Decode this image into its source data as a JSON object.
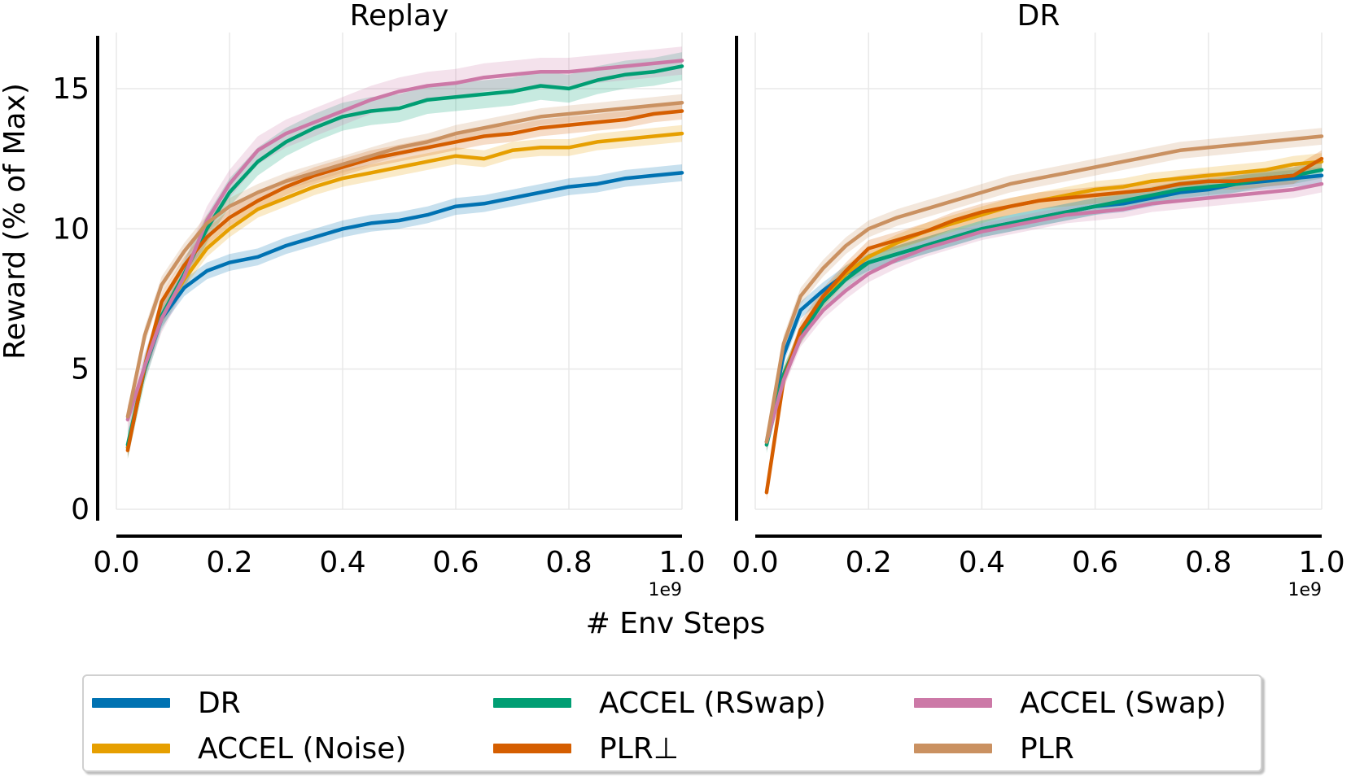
{
  "colors": {
    "DR": "#0072b2",
    "ACCEL (Noise)": "#e69f00",
    "ACCEL (RSwap)": "#009e73",
    "PLR_perp": "#d55e00",
    "ACCEL (Swap)": "#cc79a7",
    "PLR": "#ca9161"
  },
  "chart_data": [
    {
      "type": "line",
      "title": "Replay",
      "xlabel": "# Env Steps",
      "ylabel": "Reward (% of Max)",
      "x_scale_label": "1e9",
      "xlim": [
        0.0,
        1.0
      ],
      "ylim": [
        0,
        17
      ],
      "xticks": [
        "0.0",
        "0.2",
        "0.4",
        "0.6",
        "0.8",
        "1.0"
      ],
      "yticks": [
        "0",
        "5",
        "10",
        "15"
      ],
      "grid": true,
      "x": [
        0.02,
        0.05,
        0.08,
        0.12,
        0.16,
        0.2,
        0.25,
        0.3,
        0.35,
        0.4,
        0.45,
        0.5,
        0.55,
        0.6,
        0.65,
        0.7,
        0.75,
        0.8,
        0.85,
        0.9,
        0.95,
        1.0
      ],
      "series": [
        {
          "name": "DR",
          "color_key": "DR",
          "band": 0.3,
          "values": [
            2.2,
            5.0,
            6.8,
            7.9,
            8.5,
            8.8,
            9.0,
            9.4,
            9.7,
            10.0,
            10.2,
            10.3,
            10.5,
            10.8,
            10.9,
            11.1,
            11.3,
            11.5,
            11.6,
            11.8,
            11.9,
            12.0
          ]
        },
        {
          "name": "ACCEL (Noise)",
          "color_key": "ACCEL (Noise)",
          "band": 0.3,
          "values": [
            2.2,
            5.0,
            6.9,
            8.2,
            9.3,
            10.0,
            10.7,
            11.1,
            11.5,
            11.8,
            12.0,
            12.2,
            12.4,
            12.6,
            12.5,
            12.8,
            12.9,
            12.9,
            13.1,
            13.2,
            13.3,
            13.4
          ]
        },
        {
          "name": "ACCEL (RSwap)",
          "color_key": "ACCEL (RSwap)",
          "band": 0.5,
          "values": [
            2.3,
            5.0,
            6.9,
            8.4,
            10.0,
            11.3,
            12.4,
            13.1,
            13.6,
            14.0,
            14.2,
            14.3,
            14.6,
            14.7,
            14.8,
            14.9,
            15.1,
            15.0,
            15.3,
            15.5,
            15.6,
            15.8
          ]
        },
        {
          "name": "PLR⊥",
          "color_key": "PLR_perp",
          "band": 0.3,
          "values": [
            2.1,
            5.1,
            7.4,
            8.7,
            9.7,
            10.4,
            11.0,
            11.5,
            11.9,
            12.2,
            12.5,
            12.7,
            12.9,
            13.1,
            13.3,
            13.4,
            13.6,
            13.7,
            13.8,
            13.9,
            14.1,
            14.2
          ]
        },
        {
          "name": "ACCEL (Swap)",
          "color_key": "ACCEL (Swap)",
          "band": 0.5,
          "values": [
            3.2,
            5.1,
            6.8,
            8.3,
            10.3,
            11.6,
            12.8,
            13.4,
            13.8,
            14.2,
            14.6,
            14.9,
            15.1,
            15.2,
            15.4,
            15.5,
            15.6,
            15.6,
            15.7,
            15.8,
            15.9,
            16.0
          ]
        },
        {
          "name": "PLR",
          "color_key": "PLR",
          "band": 0.3,
          "values": [
            3.3,
            6.2,
            8.0,
            9.2,
            10.2,
            10.8,
            11.3,
            11.7,
            12.0,
            12.3,
            12.6,
            12.9,
            13.1,
            13.4,
            13.6,
            13.8,
            14.0,
            14.1,
            14.2,
            14.3,
            14.4,
            14.5
          ]
        }
      ]
    },
    {
      "type": "line",
      "title": "DR",
      "xlabel": "# Env Steps",
      "ylabel": "",
      "x_scale_label": "1e9",
      "xlim": [
        0.0,
        1.0
      ],
      "ylim": [
        0,
        17
      ],
      "xticks": [
        "0.0",
        "0.2",
        "0.4",
        "0.6",
        "0.8",
        "1.0"
      ],
      "yticks": [],
      "grid": true,
      "x": [
        0.02,
        0.05,
        0.08,
        0.12,
        0.16,
        0.2,
        0.25,
        0.3,
        0.35,
        0.4,
        0.45,
        0.5,
        0.55,
        0.6,
        0.65,
        0.7,
        0.75,
        0.8,
        0.85,
        0.9,
        0.95,
        1.0
      ],
      "series": [
        {
          "name": "DR",
          "color_key": "DR",
          "band": 0.3,
          "values": [
            2.4,
            5.5,
            7.1,
            7.8,
            8.4,
            8.8,
            9.1,
            9.4,
            9.7,
            10.0,
            10.2,
            10.4,
            10.6,
            10.8,
            10.9,
            11.1,
            11.3,
            11.4,
            11.6,
            11.7,
            11.8,
            11.9
          ]
        },
        {
          "name": "ACCEL (Noise)",
          "color_key": "ACCEL (Noise)",
          "band": 0.3,
          "values": [
            2.4,
            4.8,
            6.2,
            7.5,
            8.4,
            9.0,
            9.5,
            9.9,
            10.2,
            10.5,
            10.8,
            11.0,
            11.2,
            11.4,
            11.5,
            11.7,
            11.8,
            11.9,
            12.0,
            12.1,
            12.3,
            12.4
          ]
        },
        {
          "name": "ACCEL (RSwap)",
          "color_key": "ACCEL (RSwap)",
          "band": 0.3,
          "values": [
            2.3,
            4.8,
            6.2,
            7.4,
            8.2,
            8.8,
            9.1,
            9.4,
            9.7,
            10.0,
            10.2,
            10.4,
            10.6,
            10.8,
            11.0,
            11.2,
            11.4,
            11.5,
            11.6,
            11.8,
            11.9,
            12.1
          ]
        },
        {
          "name": "PLR⊥",
          "color_key": "PLR_perp",
          "band": 0.3,
          "values": [
            0.6,
            4.6,
            6.4,
            7.6,
            8.5,
            9.3,
            9.6,
            9.9,
            10.3,
            10.6,
            10.8,
            11.0,
            11.1,
            11.2,
            11.3,
            11.4,
            11.6,
            11.7,
            11.7,
            11.8,
            11.9,
            12.5
          ]
        },
        {
          "name": "ACCEL (Swap)",
          "color_key": "ACCEL (Swap)",
          "band": 0.3,
          "values": [
            2.4,
            4.6,
            6.1,
            7.1,
            7.8,
            8.4,
            8.9,
            9.3,
            9.6,
            9.9,
            10.1,
            10.3,
            10.5,
            10.6,
            10.7,
            10.9,
            11.0,
            11.1,
            11.2,
            11.3,
            11.4,
            11.6
          ]
        },
        {
          "name": "PLR",
          "color_key": "PLR",
          "band": 0.3,
          "values": [
            2.4,
            5.9,
            7.6,
            8.6,
            9.4,
            10.0,
            10.4,
            10.7,
            11.0,
            11.3,
            11.6,
            11.8,
            12.0,
            12.2,
            12.4,
            12.6,
            12.8,
            12.9,
            13.0,
            13.1,
            13.2,
            13.3
          ]
        }
      ]
    }
  ],
  "legend": {
    "items": [
      {
        "label": "DR",
        "color_key": "DR"
      },
      {
        "label": "ACCEL (RSwap)",
        "color_key": "ACCEL (RSwap)"
      },
      {
        "label": "ACCEL (Swap)",
        "color_key": "ACCEL (Swap)"
      },
      {
        "label": "ACCEL (Noise)",
        "color_key": "ACCEL (Noise)"
      },
      {
        "label": "PLR⊥",
        "color_key": "PLR_perp"
      },
      {
        "label": "PLR",
        "color_key": "PLR"
      }
    ]
  }
}
